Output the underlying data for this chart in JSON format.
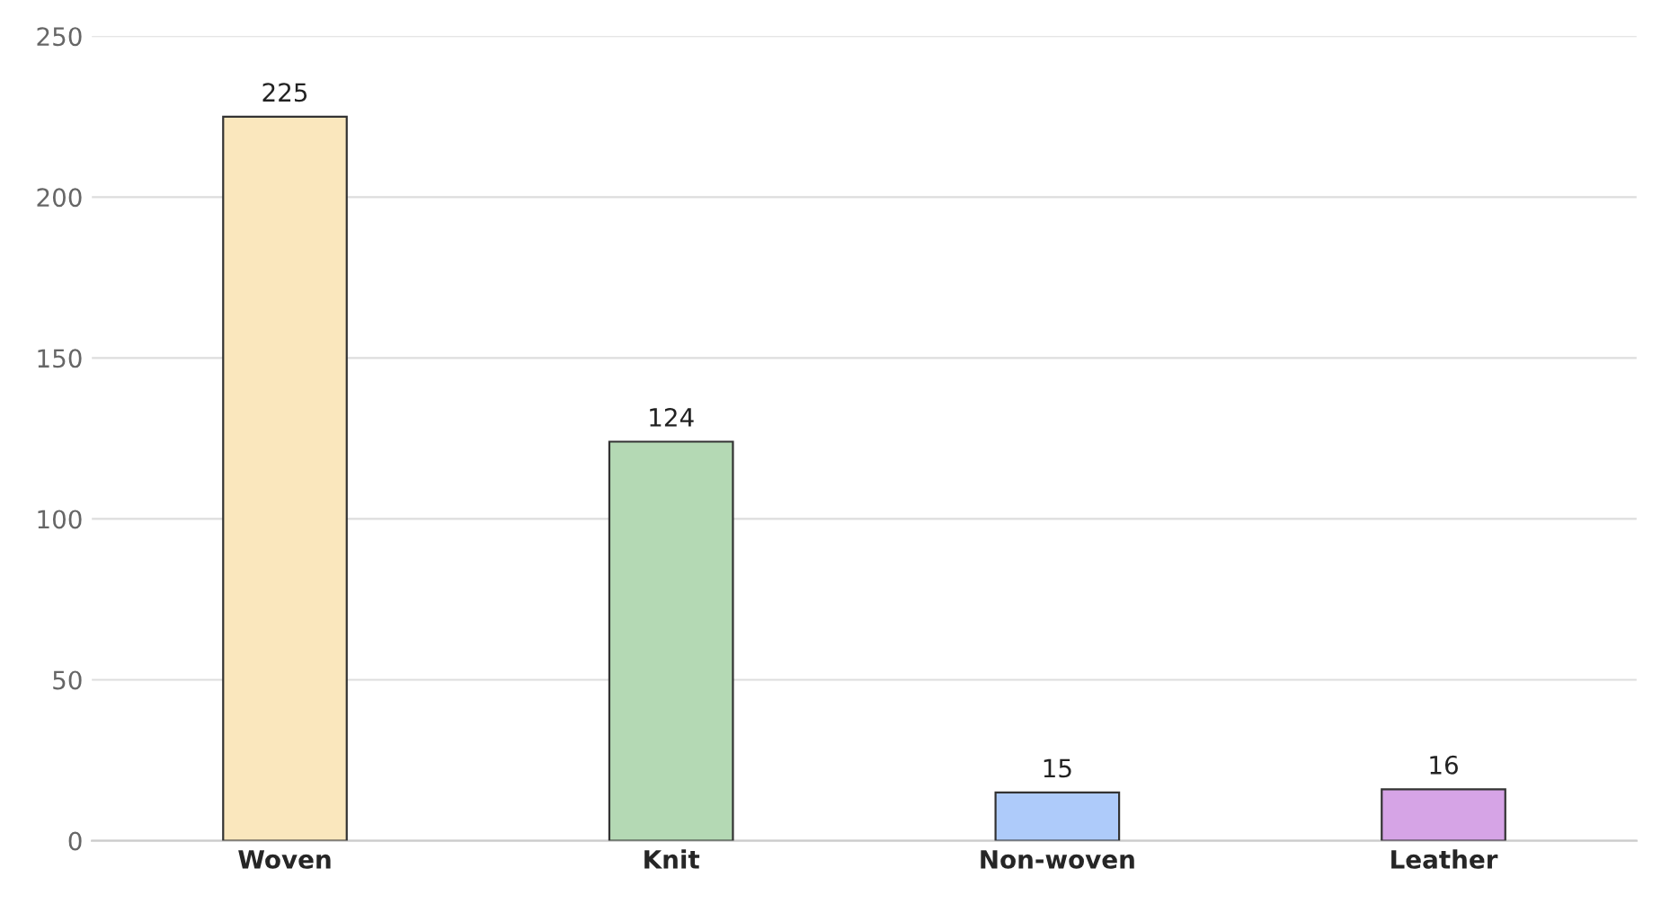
{
  "chart_data": {
    "type": "bar",
    "categories": [
      "Woven",
      "Knit",
      "Non-woven",
      "Leather"
    ],
    "values": [
      225,
      124,
      15,
      16
    ],
    "colors": [
      "#fae7bd",
      "#b4d9b4",
      "#aecbfa",
      "#d6a4e6"
    ],
    "ylim": [
      0,
      250
    ],
    "yticks": [
      0,
      50,
      100,
      150,
      200,
      250
    ],
    "grid": "y",
    "data_labels": true
  }
}
